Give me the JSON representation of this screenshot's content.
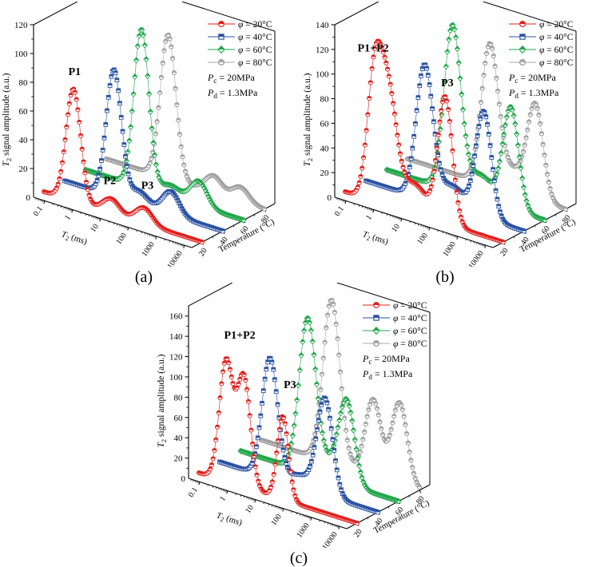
{
  "figure": {
    "background": "#ffffff",
    "captions": [
      "(a)",
      "(b)",
      "(c)"
    ]
  },
  "legend": {
    "items": [
      {
        "sym": "φ",
        "rest": " = 20°C",
        "color": "#e2201d",
        "marker": "circle"
      },
      {
        "sym": "φ",
        "rest": " = 40°C",
        "color": "#2b52a2",
        "marker": "square"
      },
      {
        "sym": "φ",
        "rest": " = 60°C",
        "color": "#22a64c",
        "marker": "diamond"
      },
      {
        "sym": "φ",
        "rest": " = 80°C",
        "color": "#a8a8a8",
        "marker": "circle"
      }
    ],
    "conditions": [
      {
        "sym": "P",
        "sub": "c",
        "rest": " = 20MPa"
      },
      {
        "sym": "P",
        "sub": "d",
        "rest": " = 1.3MPa"
      }
    ]
  },
  "chart_data": [
    {
      "type": "scatter",
      "projection": "3d-waterfall",
      "panel": "(a)",
      "x_axis": {
        "label": "T2 (ms)",
        "label_sym": "T",
        "label_sub": "2",
        "label_rest": " (ms)",
        "scale": "log",
        "ticks": [
          "0.1",
          "1",
          "10",
          "100",
          "1000",
          "10000"
        ],
        "range_log10": [
          -1.4,
          4.26
        ]
      },
      "y_axis": {
        "label": "T2 signal amplitude (a.u.)",
        "label_sym": "T",
        "label_sub": "2",
        "label_rest": " signal amplitude (a.u.)",
        "ticks": [
          0,
          20,
          40,
          60,
          80,
          100,
          120
        ],
        "max": 120
      },
      "z_axis": {
        "label": "Temperature (°C)",
        "ticks": [
          20,
          40,
          60,
          80
        ]
      },
      "annotations": [
        {
          "text": "P1",
          "t2": 0.5,
          "amp": 88,
          "temp": 20
        },
        {
          "text": "P2",
          "t2": 9,
          "amp": 20,
          "temp": 20
        },
        {
          "text": "P3",
          "t2": 200,
          "amp": 25,
          "temp": 20
        }
      ],
      "series": [
        {
          "name": "φ = 20°C",
          "temp": 20,
          "marker": "circle",
          "color": "#e2201d",
          "peaks": [
            {
              "t2": 0.45,
              "amp": 78,
              "sigma": 0.26
            },
            {
              "t2": 10,
              "amp": 10,
              "sigma": 0.3
            },
            {
              "t2": 150,
              "amp": 11,
              "sigma": 0.3
            }
          ]
        },
        {
          "name": "φ = 40°C",
          "temp": 40,
          "marker": "square",
          "color": "#2b52a2",
          "peaks": [
            {
              "t2": 2.3,
              "amp": 88,
              "sigma": 0.27
            },
            {
              "t2": 18,
              "amp": 9,
              "sigma": 0.32
            },
            {
              "t2": 250,
              "amp": 16,
              "sigma": 0.3
            }
          ]
        },
        {
          "name": "φ = 60°C",
          "temp": 60,
          "marker": "diamond",
          "color": "#22a64c",
          "peaks": [
            {
              "t2": 4,
              "amp": 110,
              "sigma": 0.27
            },
            {
              "t2": 45,
              "amp": 8,
              "sigma": 0.35
            },
            {
              "t2": 450,
              "amp": 17,
              "sigma": 0.3
            }
          ]
        },
        {
          "name": "φ = 80°C",
          "temp": 80,
          "marker": "circle",
          "color": "#a8a8a8",
          "peaks": [
            {
              "t2": 6.5,
              "amp": 100,
              "sigma": 0.28
            },
            {
              "t2": 270,
              "amp": 12,
              "sigma": 0.3
            },
            {
              "t2": 2500,
              "amp": 10,
              "sigma": 0.3
            }
          ]
        }
      ]
    },
    {
      "type": "scatter",
      "projection": "3d-waterfall",
      "panel": "(b)",
      "x_axis": {
        "label": "T2 (ms)",
        "label_sym": "T",
        "label_sub": "2",
        "label_rest": " (ms)",
        "scale": "log",
        "ticks": [
          "0.1",
          "1",
          "10",
          "100",
          "1000",
          "10000"
        ],
        "range_log10": [
          -1.4,
          4.26
        ]
      },
      "y_axis": {
        "label": "T2 signal amplitude (a.u.)",
        "label_sym": "T",
        "label_sub": "2",
        "label_rest": " signal amplitude (a.u.)",
        "ticks": [
          0,
          20,
          40,
          60,
          80,
          100,
          120,
          140
        ],
        "max": 140
      },
      "z_axis": {
        "label": "Temperature (°C)",
        "ticks": [
          20,
          40,
          60,
          80
        ]
      },
      "annotations": [
        {
          "text": "P1+P2",
          "t2": 0.4,
          "amp": 121,
          "temp": 20
        },
        {
          "text": "P3",
          "t2": 180,
          "amp": 112,
          "temp": 20
        }
      ],
      "series": [
        {
          "name": "φ = 20°C",
          "temp": 20,
          "marker": "circle",
          "color": "#e2201d",
          "peaks": [
            {
              "t2": 0.45,
              "amp": 100,
              "sigma": 0.26
            },
            {
              "t2": 1.4,
              "amp": 88,
              "sigma": 0.3
            },
            {
              "t2": 12,
              "amp": 24,
              "sigma": 0.45
            },
            {
              "t2": 150,
              "amp": 102,
              "sigma": 0.26
            }
          ]
        },
        {
          "name": "φ = 40°C",
          "temp": 40,
          "marker": "square",
          "color": "#2b52a2",
          "peaks": [
            {
              "t2": 5,
              "amp": 108,
              "sigma": 0.3
            },
            {
              "t2": 50,
              "amp": 18,
              "sigma": 0.45
            },
            {
              "t2": 650,
              "amp": 86,
              "sigma": 0.28
            }
          ]
        },
        {
          "name": "φ = 60°C",
          "temp": 60,
          "marker": "diamond",
          "color": "#22a64c",
          "peaks": [
            {
              "t2": 9,
              "amp": 133,
              "sigma": 0.3
            },
            {
              "t2": 90,
              "amp": 20,
              "sigma": 0.45
            },
            {
              "t2": 1100,
              "amp": 82,
              "sigma": 0.28
            }
          ]
        },
        {
          "name": "φ = 80°C",
          "temp": 80,
          "marker": "circle",
          "color": "#a8a8a8",
          "peaks": [
            {
              "t2": 35,
              "amp": 112,
              "sigma": 0.3
            },
            {
              "t2": 250,
              "amp": 18,
              "sigma": 0.45
            },
            {
              "t2": 1500,
              "amp": 74,
              "sigma": 0.28
            }
          ]
        }
      ]
    },
    {
      "type": "scatter",
      "projection": "3d-waterfall",
      "panel": "(c)",
      "x_axis": {
        "label": "T2 (ms)",
        "label_sym": "T",
        "label_sub": "2",
        "label_rest": " (ms)",
        "scale": "log",
        "ticks": [
          "0.1",
          "1",
          "10",
          "100",
          "1000",
          "10000"
        ],
        "range_log10": [
          -1.4,
          4.26
        ]
      },
      "y_axis": {
        "label": "T2 signal amplitude (a.u.)",
        "label_sym": "T",
        "label_sub": "2",
        "label_rest": " signal amplitude (a.u.)",
        "ticks": [
          0,
          20,
          40,
          60,
          80,
          100,
          120,
          140,
          160
        ],
        "max": 170
      },
      "z_axis": {
        "label": "Temperature (°C)",
        "ticks": [
          20,
          40,
          60,
          80
        ]
      },
      "annotations": [
        {
          "text": "P1+P2",
          "t2": 1.15,
          "amp": 145,
          "temp": 20
        },
        {
          "text": "P3",
          "t2": 72,
          "amp": 112,
          "temp": 20
        }
      ],
      "series": [
        {
          "name": "φ = 20°C",
          "temp": 20,
          "marker": "circle",
          "color": "#e2201d",
          "peaks": [
            {
              "t2": 0.37,
              "amp": 118,
              "sigma": 0.24
            },
            {
              "t2": 1.6,
              "amp": 108,
              "sigma": 0.24
            },
            {
              "t2": 40,
              "amp": 82,
              "sigma": 0.2
            }
          ]
        },
        {
          "name": "φ = 40°C",
          "temp": 40,
          "marker": "square",
          "color": "#2b52a2",
          "peaks": [
            {
              "t2": 2.5,
              "amp": 118,
              "sigma": 0.28
            },
            {
              "t2": 30,
              "amp": 12,
              "sigma": 0.4
            },
            {
              "t2": 230,
              "amp": 95,
              "sigma": 0.28
            }
          ]
        },
        {
          "name": "φ = 60°C",
          "temp": 60,
          "marker": "diamond",
          "color": "#22a64c",
          "peaks": [
            {
              "t2": 10,
              "amp": 150,
              "sigma": 0.3
            },
            {
              "t2": 60,
              "amp": 14,
              "sigma": 0.4
            },
            {
              "t2": 250,
              "amp": 80,
              "sigma": 0.28
            }
          ]
        },
        {
          "name": "φ = 80°C",
          "temp": 80,
          "marker": "circle",
          "color": "#a8a8a8",
          "peaks": [
            {
              "t2": 13,
              "amp": 160,
              "sigma": 0.3
            },
            {
              "t2": 400,
              "amp": 75,
              "sigma": 0.28
            },
            {
              "t2": 3500,
              "amp": 80,
              "sigma": 0.28
            }
          ]
        }
      ]
    }
  ]
}
